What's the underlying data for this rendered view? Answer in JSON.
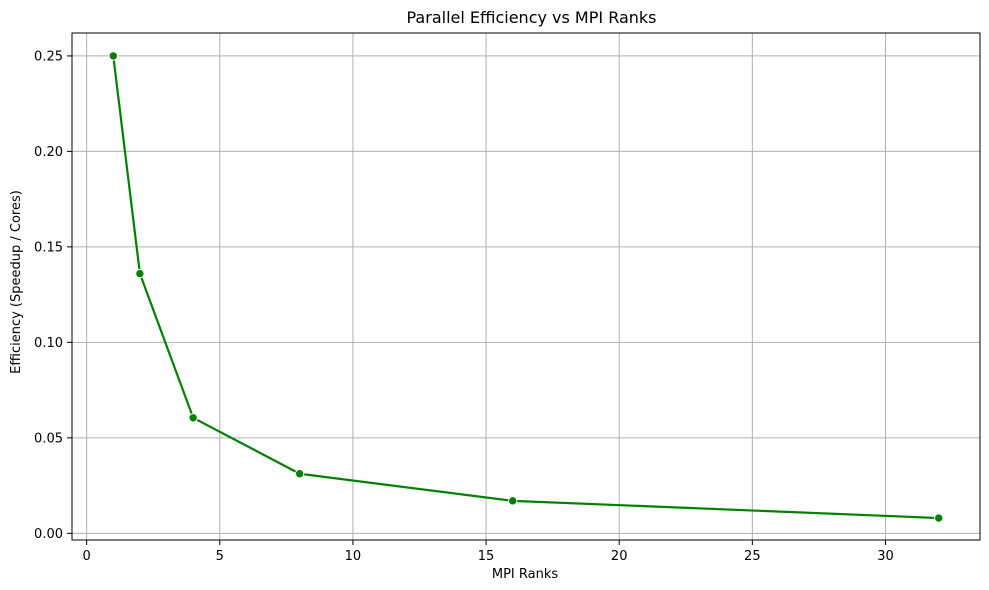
{
  "chart_data": {
    "type": "line",
    "title": "Parallel Efficiency vs MPI Ranks",
    "xlabel": "MPI Ranks",
    "ylabel": "Efficiency (Speedup / Cores)",
    "xlim": [
      -0.55,
      33.55
    ],
    "ylim": [
      -0.0035,
      0.262
    ],
    "x_ticks": [
      0,
      5,
      10,
      15,
      20,
      25,
      30
    ],
    "x_tick_labels": [
      "0",
      "5",
      "10",
      "15",
      "20",
      "25",
      "30"
    ],
    "y_ticks": [
      0.0,
      0.05,
      0.1,
      0.15,
      0.2,
      0.25
    ],
    "y_tick_labels": [
      "0.00",
      "0.05",
      "0.10",
      "0.15",
      "0.20",
      "0.25"
    ],
    "grid": true,
    "series": [
      {
        "color": "#008000",
        "marker": "circle",
        "x": [
          1,
          2,
          4,
          8,
          16,
          32
        ],
        "values": [
          0.25,
          0.136,
          0.0605,
          0.0312,
          0.017,
          0.008
        ]
      }
    ]
  }
}
